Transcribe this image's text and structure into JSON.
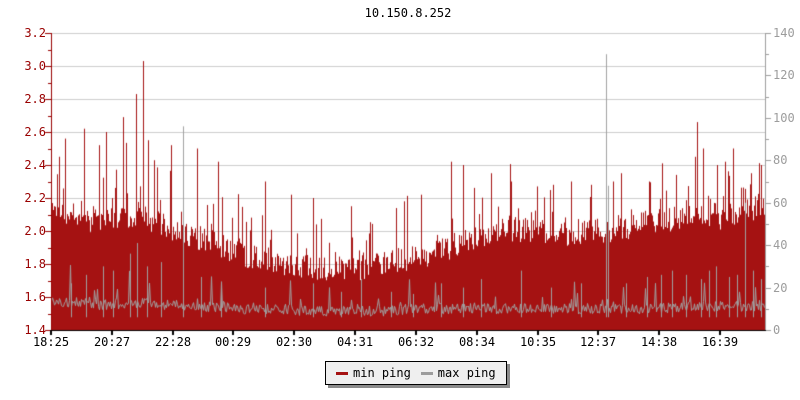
{
  "chart_data": {
    "type": "area+line timeseries (ping monitoring graph)",
    "title": "10.150.8.252",
    "x_axis": {
      "tick_labels": [
        "18:25",
        "20:27",
        "22:28",
        "00:29",
        "02:30",
        "04:31",
        "06:32",
        "08:34",
        "10:35",
        "12:37",
        "14:38",
        "16:39"
      ]
    },
    "y_axis_left": {
      "min": 1.4,
      "max": 3.2,
      "tick_step": 0.2,
      "minor_tick_step": 0.1,
      "tick_labels": [
        "3.2",
        "3.0",
        "2.8",
        "2.6",
        "2.4",
        "2.2",
        "2.0",
        "1.8",
        "1.6",
        "1.4"
      ],
      "color": "#990000"
    },
    "y_axis_right": {
      "min": 0,
      "max": 140,
      "tick_step": 20,
      "minor_tick_step": 10,
      "tick_labels": [
        "140",
        "120",
        "100",
        "80",
        "60",
        "40",
        "20",
        "0"
      ],
      "color": "#9c9c9c"
    },
    "grid": {
      "horizontal": true,
      "vertical": false,
      "color": "#cdcdcd"
    },
    "legend": {
      "position": "bottom-center",
      "items": [
        {
          "label": "min ping",
          "color": "#a51212"
        },
        {
          "label": "max ping",
          "color": "#9c9c9c"
        }
      ]
    },
    "series": [
      {
        "name": "min ping",
        "axis": "left",
        "style": "filled-area",
        "color": "#a51212",
        "envelope_base": [
          2.15,
          2.1,
          2.06,
          2.08,
          2.1,
          2.05,
          2.0,
          1.96,
          1.92,
          1.86,
          1.83,
          1.8,
          1.79,
          1.77,
          1.76,
          1.78,
          1.8,
          1.83,
          1.86,
          1.9,
          1.95,
          1.99,
          2.01,
          2.0,
          1.98,
          1.98,
          2.0,
          2.01,
          2.04,
          2.06,
          2.08,
          2.12,
          2.08,
          2.12,
          2.16
        ],
        "envelope_peak": [
          2.45,
          2.5,
          2.52,
          2.52,
          2.7,
          2.55,
          2.45,
          2.32,
          2.24,
          2.16,
          2.12,
          2.14,
          2.08,
          2.04,
          2.06,
          2.1,
          2.18,
          2.25,
          2.22,
          2.35,
          2.4,
          2.35,
          2.35,
          2.32,
          2.3,
          2.3,
          2.28,
          2.32,
          2.35,
          2.4,
          2.45,
          2.55,
          2.45,
          2.48,
          2.42
        ],
        "spikes": [
          [
            8,
            2.45
          ],
          [
            14,
            2.56
          ],
          [
            33,
            2.62
          ],
          [
            48,
            2.52
          ],
          [
            55,
            2.6
          ],
          [
            72,
            2.69
          ],
          [
            85,
            2.83
          ],
          [
            92,
            3.03
          ],
          [
            97,
            2.55
          ],
          [
            120,
            2.52
          ],
          [
            146,
            2.5
          ],
          [
            167,
            2.42
          ],
          [
            214,
            2.3
          ],
          [
            240,
            2.22
          ],
          [
            262,
            2.2
          ],
          [
            300,
            2.15
          ],
          [
            353,
            2.18
          ],
          [
            370,
            2.22
          ],
          [
            400,
            2.42
          ],
          [
            412,
            2.4
          ],
          [
            440,
            2.35
          ],
          [
            460,
            2.3
          ],
          [
            486,
            2.27
          ],
          [
            502,
            2.28
          ],
          [
            520,
            2.3
          ],
          [
            540,
            2.28
          ],
          [
            562,
            2.3
          ],
          [
            570,
            2.35
          ],
          [
            598,
            2.3
          ],
          [
            611,
            2.41
          ],
          [
            625,
            2.34
          ],
          [
            646,
            2.66
          ],
          [
            652,
            2.5
          ],
          [
            666,
            2.4
          ],
          [
            674,
            2.42
          ],
          [
            682,
            2.5
          ],
          [
            700,
            2.35
          ],
          [
            710,
            2.4
          ]
        ]
      },
      {
        "name": "max ping",
        "axis": "right",
        "style": "line",
        "color": "#a0a0a0",
        "envelope_base": [
          13,
          13,
          12,
          12,
          13,
          12,
          12,
          11,
          11,
          10,
          10,
          10,
          9,
          9,
          9,
          9,
          9,
          10,
          10,
          10,
          10,
          10,
          10,
          10,
          10,
          10,
          10,
          10,
          10,
          10,
          11,
          11,
          11,
          11,
          11
        ],
        "spikes": [
          [
            20,
            22
          ],
          [
            35,
            26
          ],
          [
            52,
            30
          ],
          [
            62,
            28
          ],
          [
            79,
            36
          ],
          [
            86,
            41
          ],
          [
            96,
            30
          ],
          [
            110,
            32
          ],
          [
            132,
            96
          ],
          [
            150,
            25
          ],
          [
            170,
            22
          ],
          [
            214,
            20
          ],
          [
            262,
            22
          ],
          [
            290,
            18
          ],
          [
            310,
            24
          ],
          [
            340,
            18
          ],
          [
            362,
            17
          ],
          [
            390,
            22
          ],
          [
            412,
            20
          ],
          [
            430,
            24
          ],
          [
            470,
            28
          ],
          [
            500,
            20
          ],
          [
            530,
            22
          ],
          [
            555,
            130
          ],
          [
            557,
            68
          ],
          [
            575,
            22
          ],
          [
            596,
            25
          ],
          [
            610,
            26
          ],
          [
            621,
            28
          ],
          [
            635,
            26
          ],
          [
            650,
            24
          ],
          [
            658,
            28
          ],
          [
            665,
            30
          ],
          [
            678,
            25
          ],
          [
            686,
            26
          ],
          [
            694,
            60
          ],
          [
            702,
            28
          ],
          [
            710,
            24
          ]
        ]
      }
    ]
  }
}
